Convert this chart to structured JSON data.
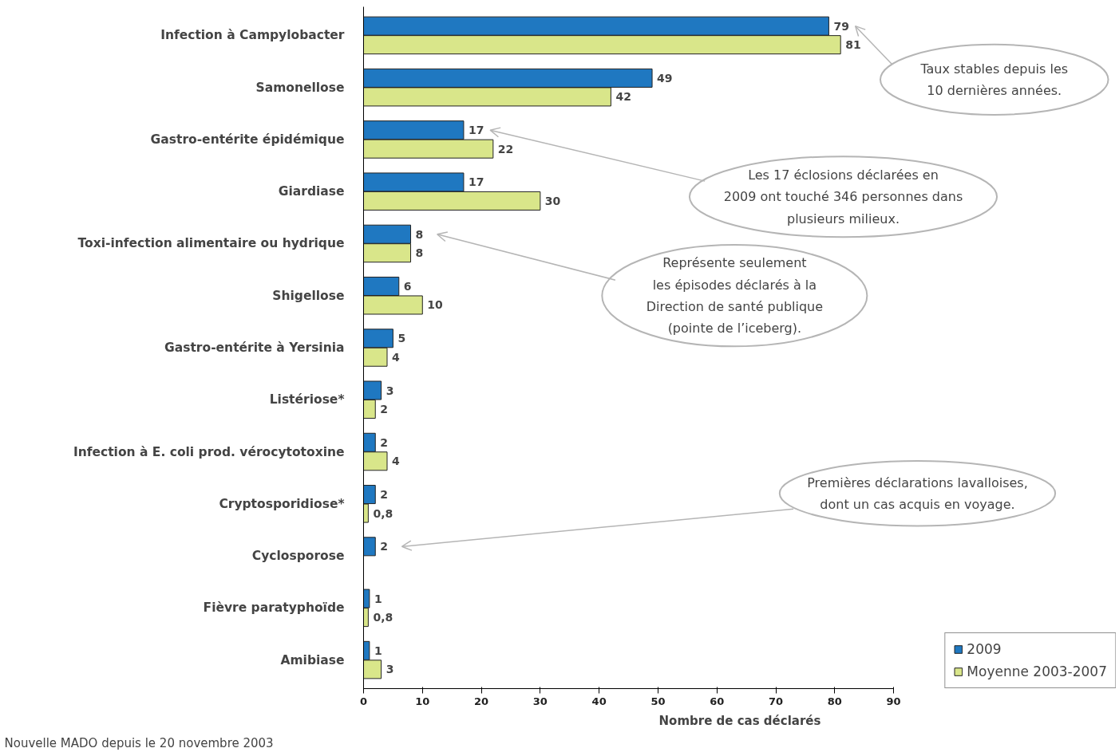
{
  "chart_data": {
    "type": "bar",
    "orientation": "horizontal",
    "xlabel": "Nombre de cas déclarés",
    "categories": [
      "Infection à Campylobacter",
      "Samonellose",
      "Gastro-entérite épidémique",
      "Giardiase",
      "Toxi-infection alimentaire ou hydrique",
      "Shigellose",
      "Gastro-entérite à Yersinia",
      "Listériose*",
      "Infection à E. coli prod. vérocytotoxine",
      "Cryptosporidiose*",
      "Cyclosporose",
      "Fièvre paratyphoïde",
      "Amibiase"
    ],
    "series": [
      {
        "name": "2009",
        "color": "#1f78c1",
        "values": [
          79,
          49,
          17,
          17,
          8,
          6,
          5,
          3,
          2,
          2,
          2,
          1,
          1
        ],
        "value_labels": [
          "79",
          "49",
          "17",
          "17",
          "8",
          "6",
          "5",
          "3",
          "2",
          "2",
          "2",
          "1",
          "1"
        ]
      },
      {
        "name": "Moyenne 2003-2007",
        "color": "#d9e68a",
        "values": [
          81,
          42,
          22,
          30,
          8,
          10,
          4,
          2,
          4,
          0.8,
          null,
          0.8,
          3
        ],
        "value_labels": [
          "81",
          "42",
          "22",
          "30",
          "8",
          "10",
          "4",
          "2",
          "4",
          "0,8",
          null,
          "0,8",
          "3"
        ]
      }
    ],
    "xlim": [
      0,
      90
    ],
    "xticks": [
      0,
      10,
      20,
      30,
      40,
      50,
      60,
      70,
      80,
      90
    ],
    "grid": false,
    "legend": "bottom right",
    "annotations": [
      "Taux stables depuis les\n10 dernières années.",
      "Les 17 éclosions déclarées en\n2009 ont touché 346 personnes dans\nplusieurs milieux.",
      "Représente seulement\nles épisodes déclarés à la\nDirection de santé publique\n(pointe de l’iceberg).",
      "Premières déclarations lavalloises,\ndont un cas acquis en voyage.",
      "Nouvelle MADO depuis le 20 novembre 2003"
    ]
  }
}
